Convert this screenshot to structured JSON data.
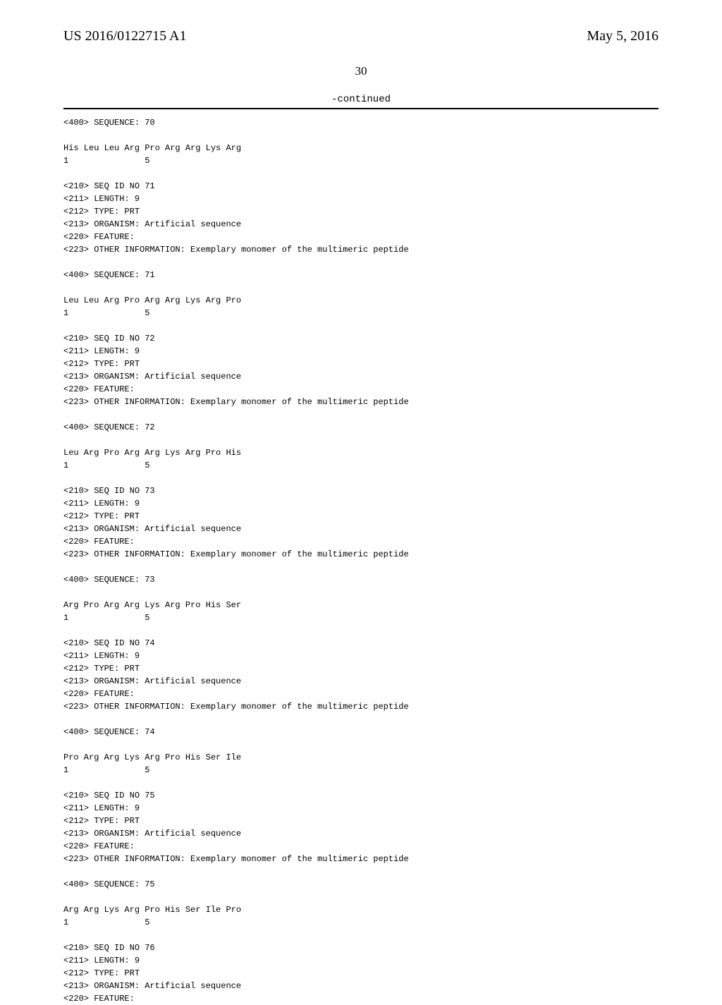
{
  "header": {
    "pub_number": "US 2016/0122715 A1",
    "pub_date": "May 5, 2016"
  },
  "page_number": "30",
  "continued_label": "-continued",
  "blocks": [
    {
      "lines": [
        "<400> SEQUENCE: 70"
      ]
    },
    {
      "lines": [
        "His Leu Leu Arg Pro Arg Arg Lys Arg",
        "1               5"
      ]
    },
    {
      "lines": [
        "<210> SEQ ID NO 71",
        "<211> LENGTH: 9",
        "<212> TYPE: PRT",
        "<213> ORGANISM: Artificial sequence",
        "<220> FEATURE:",
        "<223> OTHER INFORMATION: Exemplary monomer of the multimeric peptide"
      ]
    },
    {
      "lines": [
        "<400> SEQUENCE: 71"
      ]
    },
    {
      "lines": [
        "Leu Leu Arg Pro Arg Arg Lys Arg Pro",
        "1               5"
      ]
    },
    {
      "lines": [
        "<210> SEQ ID NO 72",
        "<211> LENGTH: 9",
        "<212> TYPE: PRT",
        "<213> ORGANISM: Artificial sequence",
        "<220> FEATURE:",
        "<223> OTHER INFORMATION: Exemplary monomer of the multimeric peptide"
      ]
    },
    {
      "lines": [
        "<400> SEQUENCE: 72"
      ]
    },
    {
      "lines": [
        "Leu Arg Pro Arg Arg Lys Arg Pro His",
        "1               5"
      ]
    },
    {
      "lines": [
        "<210> SEQ ID NO 73",
        "<211> LENGTH: 9",
        "<212> TYPE: PRT",
        "<213> ORGANISM: Artificial sequence",
        "<220> FEATURE:",
        "<223> OTHER INFORMATION: Exemplary monomer of the multimeric peptide"
      ]
    },
    {
      "lines": [
        "<400> SEQUENCE: 73"
      ]
    },
    {
      "lines": [
        "Arg Pro Arg Arg Lys Arg Pro His Ser",
        "1               5"
      ]
    },
    {
      "lines": [
        "<210> SEQ ID NO 74",
        "<211> LENGTH: 9",
        "<212> TYPE: PRT",
        "<213> ORGANISM: Artificial sequence",
        "<220> FEATURE:",
        "<223> OTHER INFORMATION: Exemplary monomer of the multimeric peptide"
      ]
    },
    {
      "lines": [
        "<400> SEQUENCE: 74"
      ]
    },
    {
      "lines": [
        "Pro Arg Arg Lys Arg Pro His Ser Ile",
        "1               5"
      ]
    },
    {
      "lines": [
        "<210> SEQ ID NO 75",
        "<211> LENGTH: 9",
        "<212> TYPE: PRT",
        "<213> ORGANISM: Artificial sequence",
        "<220> FEATURE:",
        "<223> OTHER INFORMATION: Exemplary monomer of the multimeric peptide"
      ]
    },
    {
      "lines": [
        "<400> SEQUENCE: 75"
      ]
    },
    {
      "lines": [
        "Arg Arg Lys Arg Pro His Ser Ile Pro",
        "1               5"
      ]
    },
    {
      "lines": [
        "<210> SEQ ID NO 76",
        "<211> LENGTH: 9",
        "<212> TYPE: PRT",
        "<213> ORGANISM: Artificial sequence",
        "<220> FEATURE:"
      ]
    }
  ]
}
